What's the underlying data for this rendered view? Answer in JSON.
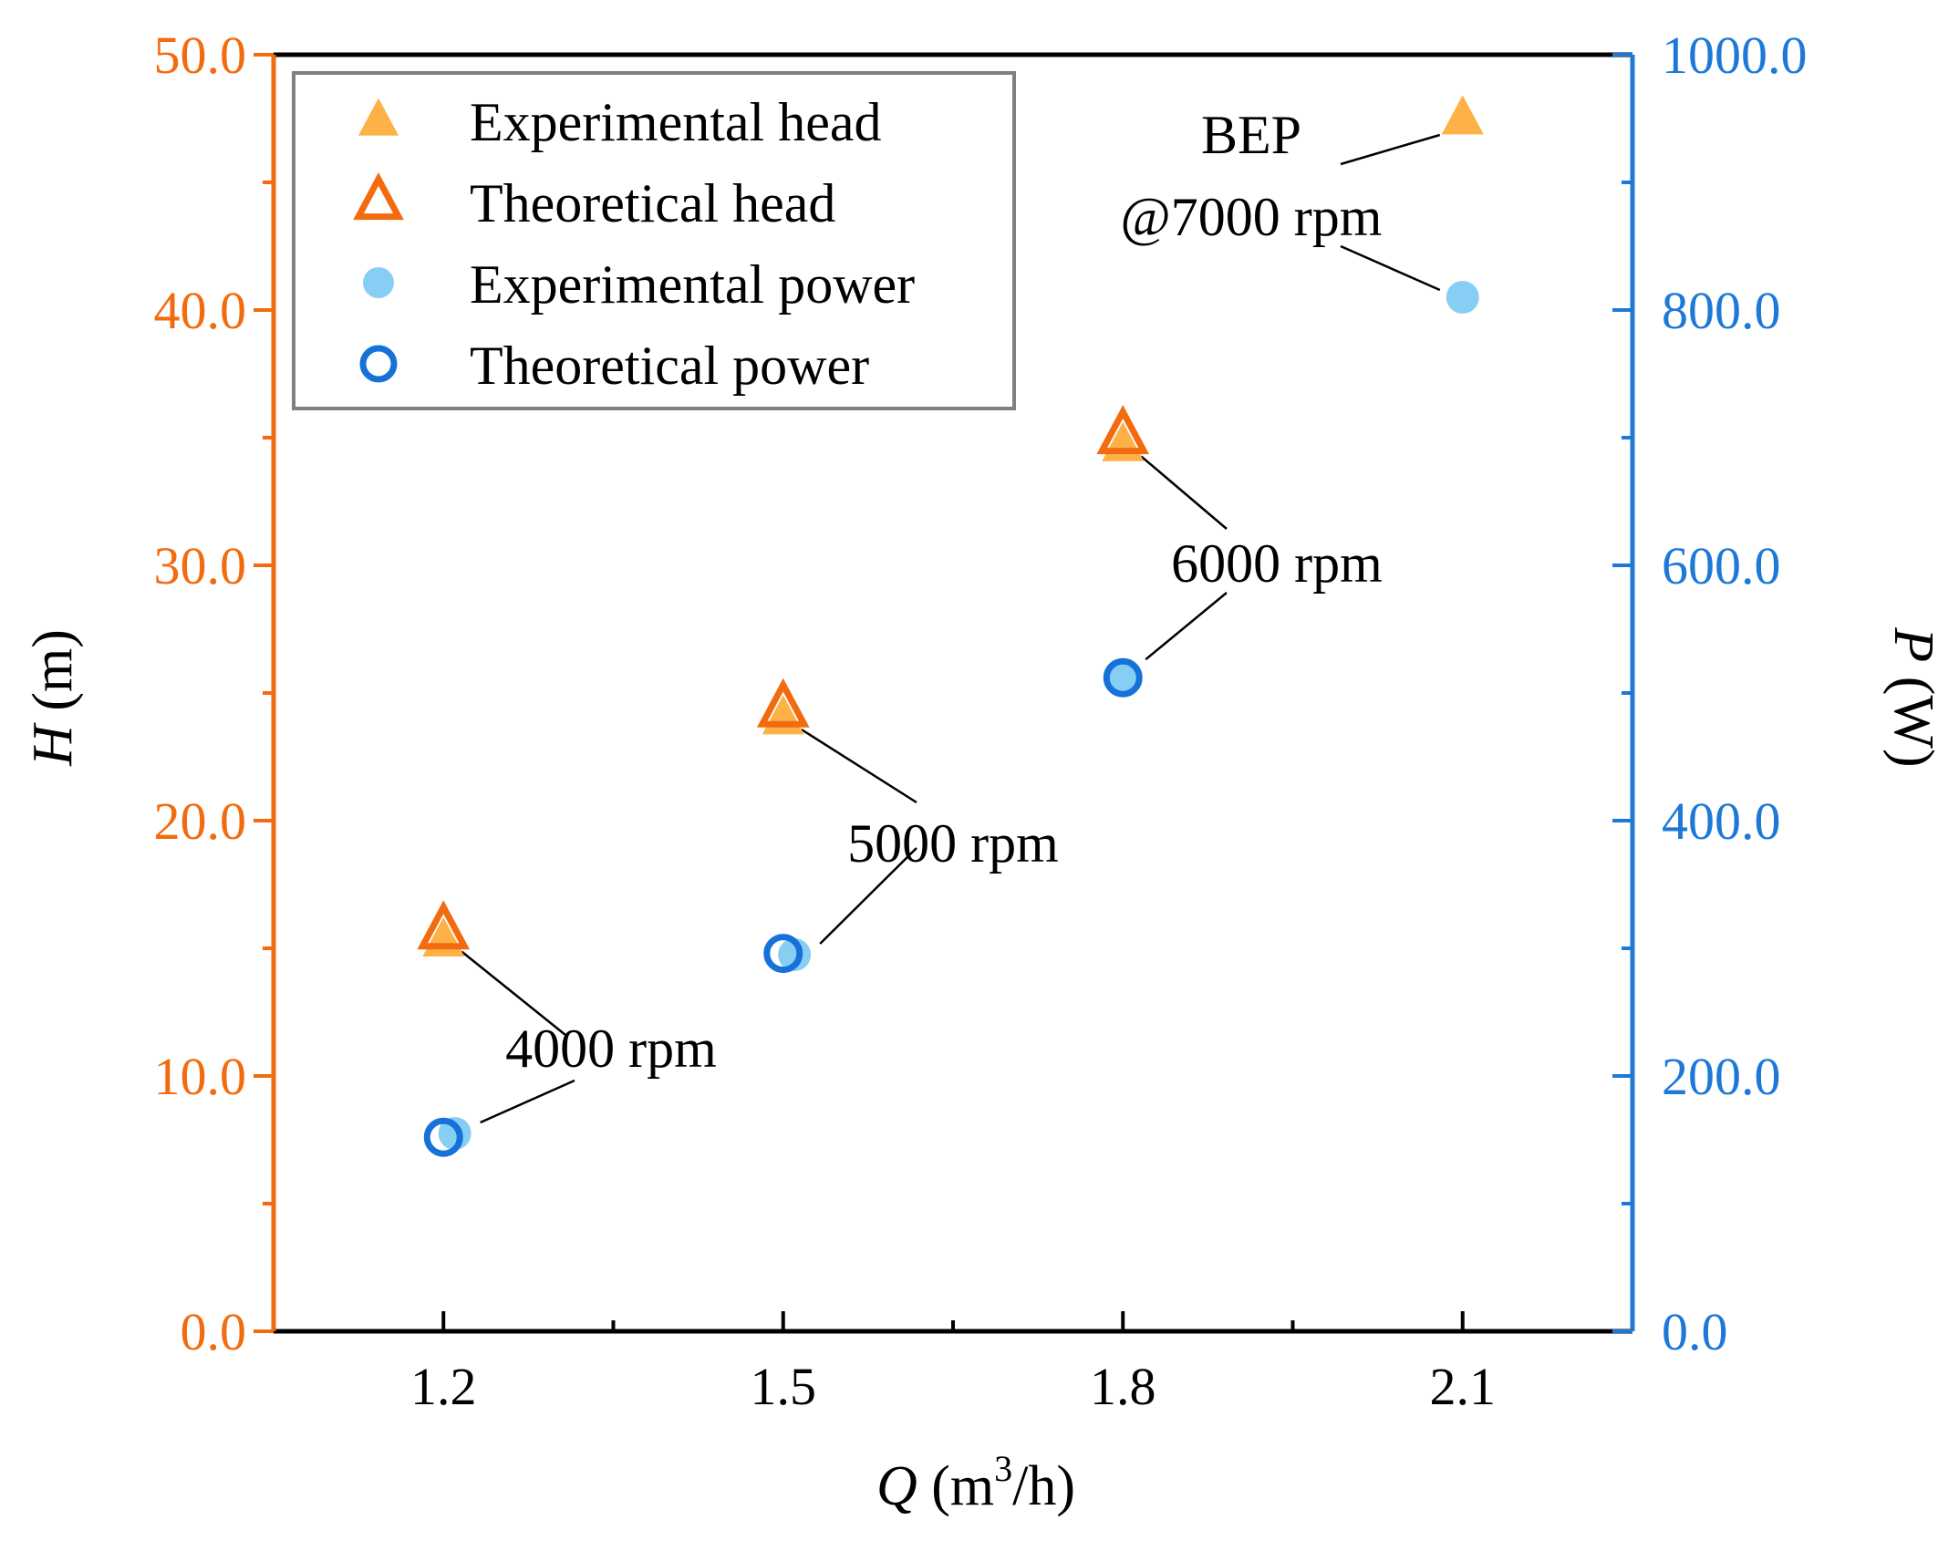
{
  "chart_data": {
    "type": "scatter",
    "title": "",
    "xlabel": {
      "var": "Q",
      "unit_pre": " (m",
      "unit_sup": "3",
      "unit_post": "/h)"
    },
    "ylabel_left": {
      "var": "H",
      "unit": " (m)"
    },
    "ylabel_right": {
      "var": "P",
      "unit": " (W)"
    },
    "xlim": [
      1.05,
      2.25
    ],
    "ylim_left": [
      0.0,
      50.0
    ],
    "ylim_right": [
      0.0,
      1000.0
    ],
    "x_ticks": [
      1.2,
      1.5,
      1.8,
      2.1
    ],
    "x_tick_labels": [
      "1.2",
      "1.5",
      "1.8",
      "2.1"
    ],
    "x_minor_ticks": [
      1.35,
      1.65,
      1.95
    ],
    "y_left_ticks": [
      0,
      10,
      20,
      30,
      40,
      50
    ],
    "y_left_tick_labels": [
      "0.0",
      "10.0",
      "20.0",
      "30.0",
      "40.0",
      "50.0"
    ],
    "y_left_minor_ticks": [
      5,
      15,
      25,
      35,
      45
    ],
    "y_right_ticks": [
      0,
      200,
      400,
      600,
      800,
      1000
    ],
    "y_right_tick_labels": [
      "0.0",
      "200.0",
      "400.0",
      "600.0",
      "800.0",
      "1000.0"
    ],
    "y_right_minor_ticks": [
      100,
      300,
      500,
      700,
      900
    ],
    "colors": {
      "left_axis": "#F26B0F",
      "right_axis": "#1E78D8",
      "exp_head": "#FDB147",
      "theo_head": "#F26B0F",
      "exp_power": "#87CEF5",
      "theo_power": "#1672D8"
    },
    "legend_position": "top-left",
    "series": [
      {
        "name": "Experimental head",
        "axis": "left",
        "marker": "triangle-filled",
        "x": [
          1.2,
          1.5,
          1.8,
          2.1
        ],
        "y": [
          15.3,
          24.0,
          34.7,
          47.5
        ]
      },
      {
        "name": "Theoretical head",
        "axis": "left",
        "marker": "triangle-open",
        "x": [
          1.2,
          1.5,
          1.8
        ],
        "y": [
          15.7,
          24.4,
          35.1
        ]
      },
      {
        "name": "Experimental power",
        "axis": "right",
        "marker": "circle-filled",
        "x": [
          1.21,
          1.51,
          1.8,
          2.1
        ],
        "y": [
          155,
          295,
          512,
          810
        ]
      },
      {
        "name": "Theoretical power",
        "axis": "right",
        "marker": "circle-open",
        "x": [
          1.2,
          1.5,
          1.8
        ],
        "y": [
          152,
          296,
          512
        ]
      }
    ],
    "annotations": [
      {
        "text": "4000 rpm"
      },
      {
        "text": "5000 rpm"
      },
      {
        "text": "6000 rpm"
      },
      {
        "text": "BEP"
      },
      {
        "text": "@7000 rpm"
      }
    ]
  }
}
